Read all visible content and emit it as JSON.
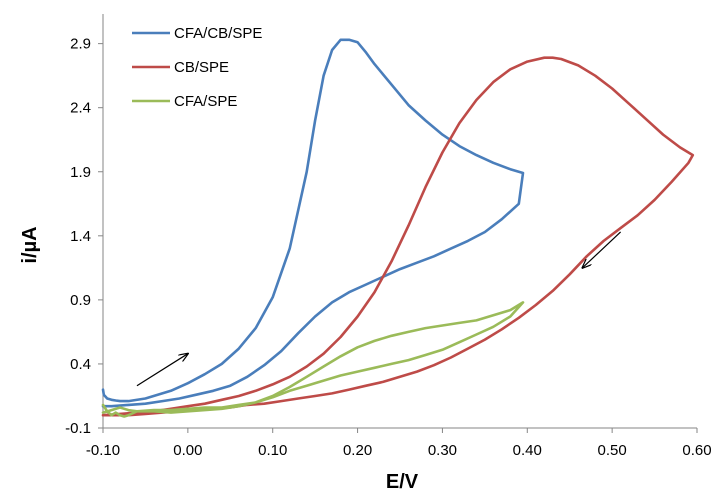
{
  "chart_data": {
    "type": "line",
    "title": "",
    "xlabel": "E/V",
    "ylabel": "i/µA",
    "xlim": [
      -0.1,
      0.6
    ],
    "ylim": [
      -0.1,
      3.1
    ],
    "x_ticks": [
      -0.1,
      0.0,
      0.1,
      0.2,
      0.3,
      0.4,
      0.5,
      0.6
    ],
    "x_tick_labels": [
      "-0.10",
      "0.00",
      "0.10",
      "0.20",
      "0.30",
      "0.40",
      "0.50",
      "0.60"
    ],
    "y_ticks": [
      -0.1,
      0.4,
      0.9,
      1.4,
      1.9,
      2.4,
      2.9
    ],
    "y_tick_labels": [
      "-0.1",
      "0.4",
      "0.9",
      "1.4",
      "1.9",
      "2.4",
      "2.9"
    ],
    "grid": false,
    "legend_position": "top-left",
    "series": [
      {
        "name": "CFA/CB/SPE",
        "color": "#4a7ebb",
        "x": [
          -0.1,
          -0.099,
          -0.095,
          -0.09,
          -0.085,
          -0.08,
          -0.07,
          -0.05,
          -0.02,
          0.0,
          0.02,
          0.04,
          0.06,
          0.08,
          0.1,
          0.12,
          0.14,
          0.15,
          0.16,
          0.17,
          0.18,
          0.19,
          0.2,
          0.21,
          0.22,
          0.24,
          0.26,
          0.28,
          0.3,
          0.32,
          0.34,
          0.36,
          0.38,
          0.395,
          0.39,
          0.37,
          0.35,
          0.33,
          0.31,
          0.29,
          0.27,
          0.25,
          0.23,
          0.21,
          0.19,
          0.17,
          0.15,
          0.13,
          0.11,
          0.09,
          0.07,
          0.05,
          0.03,
          0.01,
          -0.01,
          -0.03,
          -0.05,
          -0.07,
          -0.09,
          -0.1
        ],
        "y": [
          0.2,
          0.16,
          0.13,
          0.12,
          0.115,
          0.11,
          0.11,
          0.13,
          0.19,
          0.25,
          0.32,
          0.4,
          0.52,
          0.68,
          0.92,
          1.3,
          1.9,
          2.3,
          2.65,
          2.85,
          2.93,
          2.93,
          2.91,
          2.83,
          2.74,
          2.58,
          2.42,
          2.3,
          2.19,
          2.1,
          2.03,
          1.97,
          1.92,
          1.89,
          1.65,
          1.53,
          1.43,
          1.36,
          1.3,
          1.24,
          1.19,
          1.14,
          1.08,
          1.02,
          0.96,
          0.88,
          0.77,
          0.64,
          0.5,
          0.39,
          0.3,
          0.23,
          0.19,
          0.16,
          0.13,
          0.11,
          0.09,
          0.08,
          0.07,
          0.07
        ]
      },
      {
        "name": "CB/SPE",
        "color": "#be4b48",
        "x": [
          -0.1,
          -0.08,
          -0.06,
          -0.04,
          -0.02,
          0.0,
          0.02,
          0.04,
          0.06,
          0.08,
          0.1,
          0.12,
          0.14,
          0.16,
          0.18,
          0.2,
          0.22,
          0.24,
          0.26,
          0.28,
          0.3,
          0.32,
          0.34,
          0.36,
          0.38,
          0.4,
          0.42,
          0.43,
          0.44,
          0.46,
          0.48,
          0.5,
          0.52,
          0.54,
          0.56,
          0.58,
          0.595,
          0.59,
          0.57,
          0.55,
          0.53,
          0.51,
          0.49,
          0.47,
          0.45,
          0.43,
          0.41,
          0.39,
          0.37,
          0.35,
          0.33,
          0.31,
          0.29,
          0.27,
          0.25,
          0.23,
          0.21,
          0.19,
          0.17,
          0.15,
          0.13,
          0.11,
          0.09,
          0.07,
          0.05,
          0.03,
          0.01,
          -0.01,
          -0.03,
          -0.05,
          -0.07,
          -0.09,
          -0.1
        ],
        "y": [
          0.0,
          0.01,
          0.02,
          0.03,
          0.05,
          0.07,
          0.09,
          0.12,
          0.15,
          0.19,
          0.24,
          0.3,
          0.38,
          0.48,
          0.61,
          0.77,
          0.96,
          1.2,
          1.48,
          1.78,
          2.05,
          2.28,
          2.46,
          2.6,
          2.7,
          2.76,
          2.79,
          2.79,
          2.78,
          2.73,
          2.65,
          2.55,
          2.43,
          2.31,
          2.19,
          2.09,
          2.03,
          1.97,
          1.82,
          1.68,
          1.56,
          1.46,
          1.36,
          1.24,
          1.1,
          0.97,
          0.86,
          0.76,
          0.67,
          0.59,
          0.52,
          0.45,
          0.39,
          0.34,
          0.3,
          0.26,
          0.23,
          0.2,
          0.17,
          0.15,
          0.13,
          0.11,
          0.09,
          0.08,
          0.06,
          0.05,
          0.04,
          0.03,
          0.02,
          0.01,
          0.0,
          0.0,
          0.0
        ]
      },
      {
        "name": "CFA/SPE",
        "color": "#9bbb59",
        "x": [
          -0.1,
          -0.095,
          -0.09,
          -0.085,
          -0.08,
          -0.075,
          -0.07,
          -0.06,
          -0.04,
          -0.02,
          0.0,
          0.02,
          0.04,
          0.06,
          0.08,
          0.1,
          0.12,
          0.14,
          0.16,
          0.18,
          0.2,
          0.22,
          0.24,
          0.26,
          0.28,
          0.3,
          0.32,
          0.34,
          0.36,
          0.38,
          0.395,
          0.38,
          0.36,
          0.34,
          0.32,
          0.3,
          0.28,
          0.26,
          0.24,
          0.22,
          0.2,
          0.18,
          0.16,
          0.14,
          0.12,
          0.1,
          0.08,
          0.06,
          0.04,
          0.02,
          0.0,
          -0.02,
          -0.04,
          -0.06,
          -0.07,
          -0.08,
          -0.09,
          -0.1
        ],
        "y": [
          0.08,
          0.03,
          0.0,
          0.02,
          0.0,
          -0.01,
          0.0,
          0.03,
          0.04,
          0.04,
          0.05,
          0.06,
          0.06,
          0.08,
          0.1,
          0.14,
          0.19,
          0.23,
          0.27,
          0.31,
          0.34,
          0.37,
          0.4,
          0.43,
          0.47,
          0.51,
          0.57,
          0.63,
          0.69,
          0.77,
          0.88,
          0.82,
          0.78,
          0.74,
          0.72,
          0.7,
          0.68,
          0.65,
          0.62,
          0.58,
          0.53,
          0.46,
          0.38,
          0.3,
          0.22,
          0.15,
          0.1,
          0.07,
          0.05,
          0.04,
          0.03,
          0.02,
          0.03,
          0.03,
          0.04,
          0.06,
          0.04,
          0.02
        ]
      }
    ],
    "annotations": [
      {
        "type": "arrow",
        "from": [
          -0.06,
          0.23
        ],
        "to": [
          0.0,
          0.48
        ]
      },
      {
        "type": "arrow",
        "from": [
          0.51,
          1.43
        ],
        "to": [
          0.465,
          1.15
        ]
      }
    ]
  }
}
